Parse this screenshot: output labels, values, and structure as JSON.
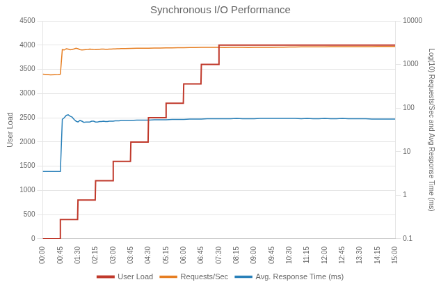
{
  "chart_data": {
    "type": "line",
    "title": "Synchronous I/O Performance",
    "ylabel": "User Load",
    "y2label": "Log(10) Requests/Sec and Avg Response Time (ms)",
    "xlim": [
      0,
      900
    ],
    "xticks": [
      {
        "value": 0,
        "label": "00:00"
      },
      {
        "value": 45,
        "label": "00:45"
      },
      {
        "value": 90,
        "label": "01:30"
      },
      {
        "value": 135,
        "label": "02:15"
      },
      {
        "value": 180,
        "label": "03:00"
      },
      {
        "value": 225,
        "label": "03:45"
      },
      {
        "value": 270,
        "label": "04:30"
      },
      {
        "value": 315,
        "label": "05:15"
      },
      {
        "value": 360,
        "label": "06:00"
      },
      {
        "value": 405,
        "label": "06:45"
      },
      {
        "value": 450,
        "label": "07:30"
      },
      {
        "value": 495,
        "label": "08:15"
      },
      {
        "value": 540,
        "label": "09:00"
      },
      {
        "value": 585,
        "label": "09:45"
      },
      {
        "value": 630,
        "label": "10:30"
      },
      {
        "value": 675,
        "label": "11:15"
      },
      {
        "value": 720,
        "label": "12:00"
      },
      {
        "value": 765,
        "label": "12:45"
      },
      {
        "value": 810,
        "label": "13:30"
      },
      {
        "value": 855,
        "label": "14:15"
      },
      {
        "value": 900,
        "label": "15:00"
      }
    ],
    "ylim": [
      0,
      4500
    ],
    "yticks": [
      0,
      500,
      1000,
      1500,
      2000,
      2500,
      3000,
      3500,
      4000,
      4500
    ],
    "y2lim": [
      0.1,
      10000
    ],
    "y2ticks": [
      0.1,
      1,
      10,
      100,
      1000,
      10000
    ],
    "log": "y2",
    "grid": true,
    "legend": "bottom",
    "series": [
      {
        "name": "User Load",
        "color": "#C0392B",
        "axis": "y",
        "x": [
          0,
          44,
          45,
          89,
          90,
          134,
          135,
          179,
          180,
          224,
          225,
          269,
          270,
          314,
          315,
          359,
          360,
          404,
          405,
          449,
          450,
          900
        ],
        "values": [
          0,
          0,
          400,
          400,
          800,
          800,
          1200,
          1200,
          1600,
          1600,
          2000,
          2000,
          2500,
          2500,
          2800,
          2800,
          3200,
          3200,
          3600,
          3600,
          4000,
          4000
        ]
      },
      {
        "name": "Requests/Sec",
        "color": "#E67E22",
        "axis": "y2",
        "x": [
          0,
          20,
          40,
          45,
          50,
          55,
          60,
          65,
          70,
          75,
          80,
          85,
          90,
          95,
          100,
          105,
          110,
          115,
          120,
          125,
          130,
          135,
          140,
          145,
          150,
          155,
          160,
          165,
          170,
          175,
          180,
          185,
          190,
          195,
          200,
          210,
          225,
          240,
          255,
          270,
          285,
          300,
          315,
          330,
          345,
          360,
          375,
          390,
          405,
          420,
          435,
          450,
          465,
          480,
          495,
          510,
          525,
          540,
          555,
          570,
          585,
          600,
          615,
          630,
          645,
          660,
          675,
          690,
          705,
          720,
          735,
          750,
          765,
          780,
          795,
          810,
          825,
          840,
          855,
          870,
          885,
          900
        ],
        "values": [
          600,
          580,
          590,
          600,
          2200,
          2150,
          2300,
          2250,
          2180,
          2220,
          2280,
          2350,
          2300,
          2200,
          2150,
          2180,
          2200,
          2220,
          2250,
          2230,
          2210,
          2200,
          2220,
          2240,
          2250,
          2260,
          2240,
          2230,
          2250,
          2260,
          2270,
          2280,
          2290,
          2300,
          2310,
          2320,
          2340,
          2350,
          2360,
          2370,
          2380,
          2390,
          2400,
          2410,
          2420,
          2430,
          2440,
          2450,
          2460,
          2470,
          2465,
          2460,
          2455,
          2460,
          2465,
          2460,
          2455,
          2460,
          2470,
          2475,
          2480,
          2490,
          2500,
          2510,
          2520,
          2530,
          2540,
          2545,
          2548,
          2550,
          2555,
          2558,
          2560,
          2562,
          2565,
          2568,
          2572,
          2575,
          2578,
          2580,
          2582,
          2585
        ]
      },
      {
        "name": "Avg. Response Time (ms)",
        "color": "#2980B9",
        "axis": "y2",
        "x": [
          0,
          20,
          40,
          45,
          50,
          55,
          60,
          65,
          70,
          75,
          80,
          85,
          90,
          95,
          100,
          105,
          110,
          115,
          120,
          125,
          130,
          135,
          140,
          145,
          150,
          155,
          160,
          165,
          170,
          175,
          180,
          185,
          190,
          195,
          200,
          210,
          225,
          240,
          255,
          270,
          285,
          300,
          315,
          330,
          345,
          360,
          375,
          390,
          405,
          420,
          435,
          450,
          465,
          480,
          495,
          510,
          525,
          540,
          555,
          570,
          585,
          600,
          615,
          630,
          645,
          660,
          675,
          690,
          705,
          720,
          735,
          750,
          765,
          780,
          795,
          810,
          825,
          840,
          855,
          870,
          885,
          900
        ],
        "values": [
          3.5,
          3.5,
          3.5,
          3.5,
          55,
          60,
          68,
          70,
          65,
          62,
          55,
          50,
          48,
          52,
          50,
          47,
          48,
          48,
          48,
          50,
          50,
          48,
          48,
          49,
          49,
          50,
          49,
          49,
          50,
          50,
          50,
          51,
          51,
          51,
          52,
          52,
          52,
          53,
          53,
          53,
          54,
          54,
          54,
          55,
          55,
          55,
          56,
          56,
          56,
          57,
          57,
          57,
          57,
          57,
          58,
          57,
          57,
          57,
          58,
          58,
          58,
          58,
          58,
          58,
          58,
          57,
          58,
          57,
          57,
          58,
          57,
          57,
          58,
          57,
          57,
          57,
          57,
          56,
          56,
          56,
          56,
          56
        ]
      }
    ]
  }
}
